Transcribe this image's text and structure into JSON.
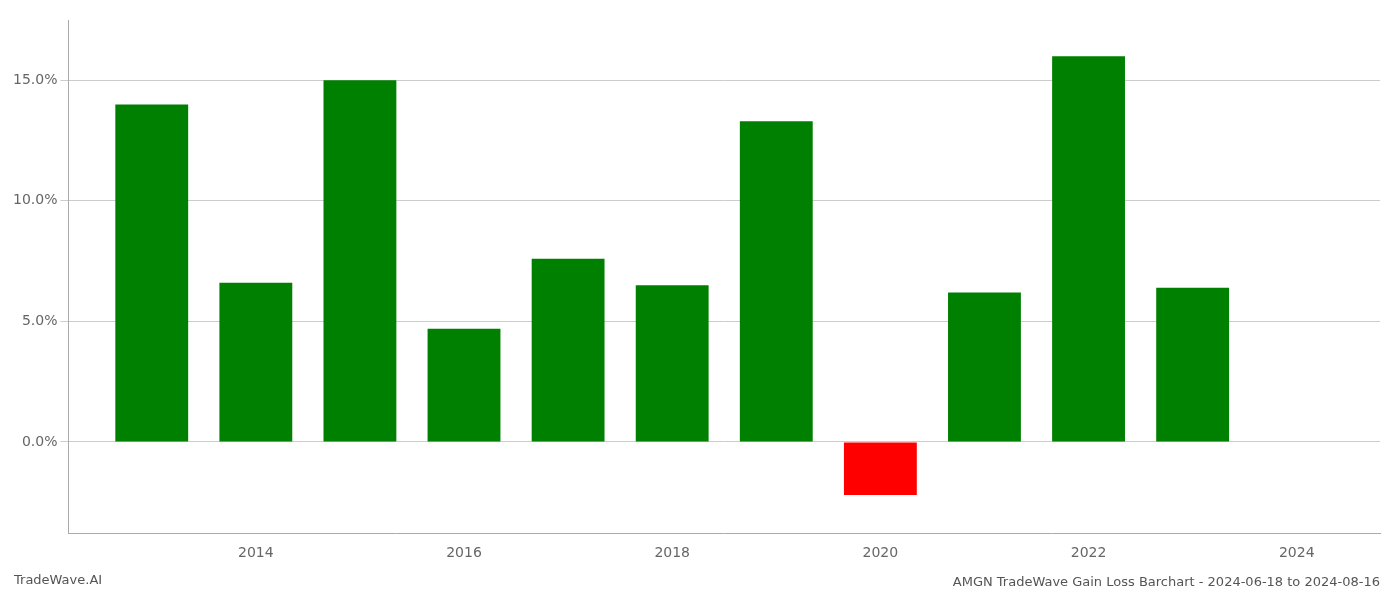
{
  "chart_data": {
    "type": "bar",
    "title": "AMGN TradeWave Gain Loss Barchart - 2024-06-18 to 2024-08-16",
    "annotations": [
      "TradeWave.AI"
    ],
    "x": [
      2013,
      2014,
      2015,
      2016,
      2017,
      2018,
      2019,
      2020,
      2021,
      2022,
      2023
    ],
    "values": [
      0.14,
      0.066,
      0.15,
      0.047,
      0.076,
      0.065,
      0.133,
      -0.022,
      0.062,
      0.16,
      0.064
    ],
    "colors": [
      "#008000",
      "#008000",
      "#008000",
      "#008000",
      "#008000",
      "#008000",
      "#008000",
      "#ff0000",
      "#008000",
      "#008000",
      "#008000"
    ],
    "xlim": [
      2012.2,
      2024.8
    ],
    "xticks": [
      2014,
      2016,
      2018,
      2020,
      2022,
      2024
    ],
    "ylim": [
      -0.038,
      0.175
    ],
    "yticks": [
      {
        "value": 0.0,
        "label": "0.0%"
      },
      {
        "value": 0.05,
        "label": "5.0%"
      },
      {
        "value": 0.1,
        "label": "10.0%"
      },
      {
        "value": 0.15,
        "label": "15.0%"
      }
    ],
    "grid": true
  }
}
